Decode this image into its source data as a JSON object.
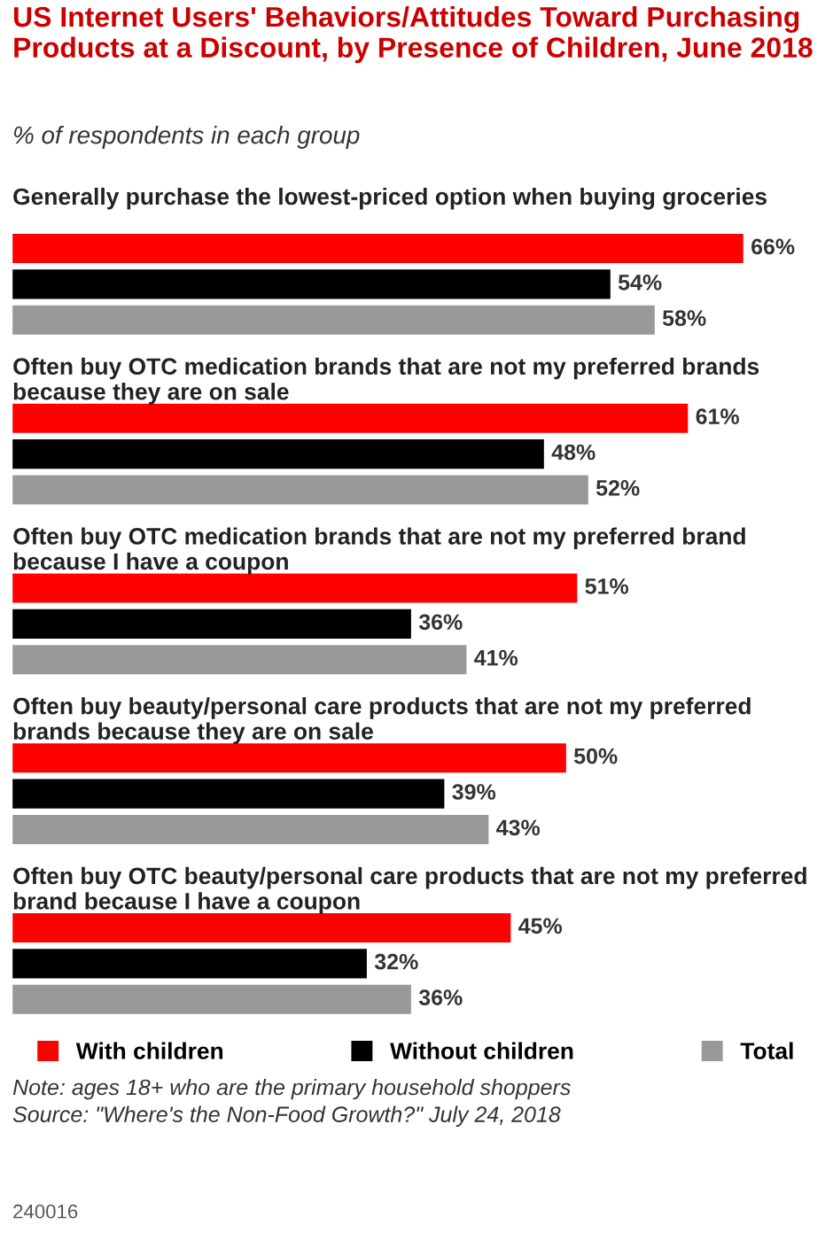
{
  "chart_data": {
    "type": "bar",
    "orientation": "horizontal",
    "title": "US Internet Users' Behaviors/Attitudes Toward Purchasing Products at a Discount, by Presence of Children, June 2018",
    "subtitle": "% of respondents in each group",
    "categories": [
      "Generally purchase the lowest-priced option when buying groceries",
      "Often buy OTC medication brands that are not my preferred brands because they are on sale",
      "Often buy OTC medication brands that are not my preferred brand because I have a coupon",
      "Often buy beauty/personal care products that are not my preferred brands because they are on sale",
      "Often buy OTC beauty/personal care products that are not my preferred brand because I have a coupon"
    ],
    "series": [
      {
        "name": "With children",
        "color": "#ff0000",
        "values": [
          66,
          61,
          51,
          50,
          45
        ],
        "value_labels": [
          "66%",
          "61%",
          "51%",
          "50%",
          "45%"
        ]
      },
      {
        "name": "Without children",
        "color": "#000000",
        "values": [
          54,
          48,
          36,
          39,
          32
        ],
        "value_labels": [
          "54%",
          "48%",
          "36%",
          "39%",
          "32%"
        ]
      },
      {
        "name": "Total",
        "color": "#999999",
        "values": [
          58,
          52,
          41,
          43,
          36
        ],
        "value_labels": [
          "58%",
          "52%",
          "41%",
          "43%",
          "36%"
        ]
      }
    ],
    "legend": "bottom",
    "annotations": [
      "Note: ages 18+ who are the primary household shoppers",
      "Source: \"Where's the Non-Food Growth?\" July 24, 2018",
      "240016"
    ]
  }
}
